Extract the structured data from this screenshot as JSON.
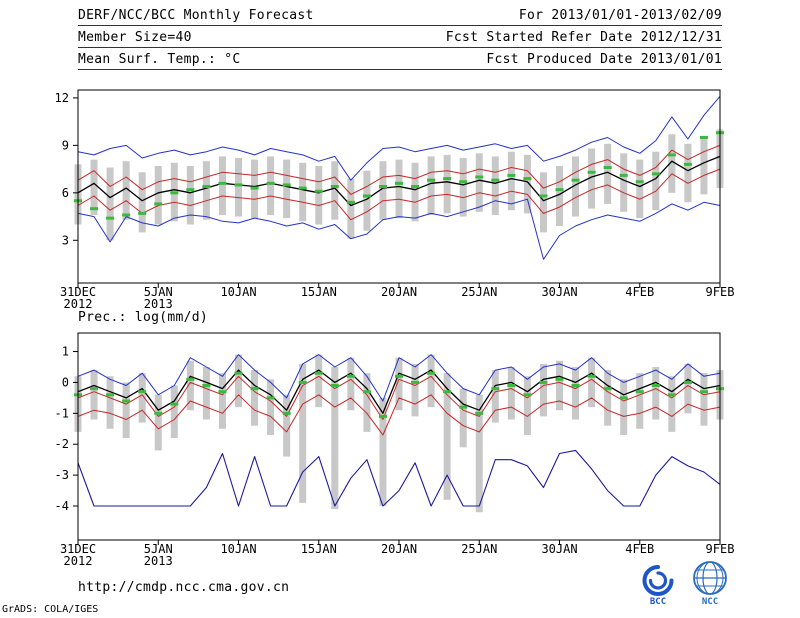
{
  "header": {
    "left": [
      "DERF/NCC/BCC Monthly Forecast",
      "Member Size=40"
    ],
    "right": [
      "For 2013/01/01-2013/02/09",
      "Fcst Started Refer Date 2012/12/31",
      "Fcst Produced Date 2013/01/01"
    ]
  },
  "footer": {
    "url": "http://cmdp.ncc.cma.gov.cn",
    "bcc_label": "BCC",
    "ncc_label": "NCC",
    "credit": "GrADS: COLA/IGES"
  },
  "colors": {
    "envelope_blue": "#2433c8",
    "quartile_red": "#c62828",
    "mean_black": "#000000",
    "min_navy": "#1b1b9e",
    "obs_green": "#3cb93c",
    "spread_gray": "#c8c8c8",
    "logo_blue": "#1e56c8"
  },
  "chart_data": [
    {
      "type": "line",
      "title": "Mean Surf. Temp.: °C",
      "x_range": [
        0,
        40
      ],
      "ylim": [
        0.3,
        12.5
      ],
      "y_ticks": [
        3,
        6,
        9,
        12
      ],
      "x_ticks": [
        {
          "pos": 0,
          "lines": [
            "31DEC",
            "2012"
          ]
        },
        {
          "pos": 5,
          "lines": [
            "5JAN",
            "2013"
          ]
        },
        {
          "pos": 10,
          "lines": [
            "10JAN"
          ]
        },
        {
          "pos": 15,
          "lines": [
            "15JAN"
          ]
        },
        {
          "pos": 20,
          "lines": [
            "20JAN"
          ]
        },
        {
          "pos": 25,
          "lines": [
            "25JAN"
          ]
        },
        {
          "pos": 30,
          "lines": [
            "30JAN"
          ]
        },
        {
          "pos": 35,
          "lines": [
            "4FEB"
          ]
        },
        {
          "pos": 40,
          "lines": [
            "9FEB"
          ]
        }
      ],
      "bars": {
        "color": "#c8c8c8",
        "high": [
          7.8,
          8.1,
          7.6,
          8.0,
          7.3,
          7.7,
          7.9,
          7.7,
          8.0,
          8.3,
          8.2,
          8.1,
          8.3,
          8.1,
          7.9,
          7.7,
          8.0,
          6.9,
          7.4,
          8.0,
          8.1,
          7.9,
          8.3,
          8.4,
          8.2,
          8.5,
          8.3,
          8.6,
          8.4,
          7.3,
          7.7,
          8.3,
          8.8,
          9.1,
          8.5,
          8.1,
          8.6,
          9.7,
          9.1,
          9.6,
          10.0
        ],
        "low": [
          4.0,
          4.6,
          3.0,
          4.3,
          3.5,
          4.0,
          4.2,
          4.0,
          4.3,
          4.6,
          4.5,
          4.4,
          4.6,
          4.4,
          4.2,
          4.0,
          4.3,
          3.1,
          3.6,
          4.3,
          4.4,
          4.2,
          4.6,
          4.7,
          4.5,
          4.8,
          4.6,
          4.9,
          4.7,
          3.5,
          3.9,
          4.5,
          5.0,
          5.3,
          4.8,
          4.4,
          4.9,
          6.0,
          5.4,
          5.9,
          6.3
        ]
      },
      "series": [
        {
          "name": "ensemble-max",
          "color": "#2433c8",
          "width": 1,
          "values": [
            8.6,
            8.4,
            8.8,
            9.0,
            8.2,
            8.5,
            8.7,
            8.4,
            8.6,
            8.9,
            8.7,
            8.4,
            8.8,
            8.6,
            8.4,
            8.0,
            8.3,
            6.8,
            7.9,
            8.8,
            8.9,
            8.6,
            8.8,
            9.0,
            8.7,
            8.9,
            9.1,
            8.8,
            9.0,
            8.0,
            8.3,
            8.7,
            9.2,
            9.5,
            8.9,
            8.5,
            9.3,
            10.8,
            9.4,
            10.9,
            12.1
          ]
        },
        {
          "name": "upper-quartile",
          "color": "#c62828",
          "width": 1,
          "values": [
            6.8,
            7.4,
            6.4,
            7.0,
            6.2,
            6.7,
            6.9,
            6.7,
            7.0,
            7.3,
            7.2,
            7.1,
            7.3,
            7.1,
            6.9,
            6.7,
            7.0,
            5.9,
            6.4,
            7.0,
            7.1,
            6.9,
            7.3,
            7.4,
            7.2,
            7.5,
            7.3,
            7.6,
            7.4,
            6.3,
            6.7,
            7.3,
            7.8,
            8.1,
            7.5,
            7.1,
            7.6,
            8.7,
            8.1,
            8.6,
            9.0
          ]
        },
        {
          "name": "ensemble-mean",
          "color": "#000000",
          "width": 1.3,
          "values": [
            6.0,
            6.6,
            5.7,
            6.3,
            5.5,
            6.0,
            6.2,
            6.0,
            6.3,
            6.6,
            6.5,
            6.4,
            6.6,
            6.4,
            6.2,
            6.0,
            6.3,
            5.2,
            5.6,
            6.3,
            6.4,
            6.2,
            6.6,
            6.7,
            6.5,
            6.8,
            6.6,
            6.9,
            6.7,
            5.5,
            5.9,
            6.5,
            7.0,
            7.3,
            6.8,
            6.4,
            6.9,
            8.0,
            7.4,
            7.9,
            8.3
          ]
        },
        {
          "name": "lower-quartile",
          "color": "#c62828",
          "width": 1,
          "values": [
            5.2,
            5.8,
            4.9,
            5.5,
            4.7,
            5.2,
            5.4,
            5.2,
            5.5,
            5.8,
            5.7,
            5.6,
            5.8,
            5.6,
            5.4,
            5.2,
            5.5,
            4.3,
            4.8,
            5.5,
            5.6,
            5.4,
            5.8,
            5.9,
            5.7,
            6.0,
            5.8,
            6.1,
            5.9,
            4.7,
            5.1,
            5.7,
            6.2,
            6.5,
            6.0,
            5.6,
            6.1,
            7.2,
            6.6,
            7.1,
            7.5
          ]
        },
        {
          "name": "ensemble-min",
          "color": "#2433c8",
          "width": 1,
          "values": [
            4.7,
            4.5,
            2.9,
            4.5,
            4.1,
            3.9,
            4.4,
            4.6,
            4.5,
            4.2,
            4.1,
            4.4,
            4.2,
            3.9,
            4.1,
            3.7,
            4.0,
            3.1,
            3.4,
            4.3,
            4.5,
            4.4,
            4.7,
            4.5,
            4.8,
            5.1,
            5.5,
            5.3,
            5.6,
            1.8,
            3.3,
            3.9,
            4.3,
            4.6,
            4.4,
            4.2,
            4.7,
            5.3,
            4.9,
            5.4,
            5.2
          ]
        }
      ],
      "markers": {
        "name": "observation-dashes",
        "color": "#3cb93c",
        "values": [
          5.5,
          5.0,
          4.4,
          4.6,
          4.7,
          5.3,
          6.0,
          6.2,
          6.4,
          6.6,
          6.5,
          6.3,
          6.6,
          6.5,
          6.3,
          6.1,
          6.4,
          5.4,
          5.8,
          6.4,
          6.6,
          6.4,
          6.8,
          6.9,
          6.7,
          7.0,
          6.8,
          7.1,
          6.9,
          5.8,
          6.2,
          6.8,
          7.3,
          7.6,
          7.1,
          6.7,
          7.2,
          8.4,
          7.8,
          9.5,
          9.8
        ]
      }
    },
    {
      "type": "line",
      "title": "Prec.: log(mm/d)",
      "x_range": [
        0,
        40
      ],
      "ylim": [
        -5.1,
        1.6
      ],
      "y_ticks": [
        1,
        0,
        -1,
        -2,
        -3,
        -4
      ],
      "x_ticks": [
        {
          "pos": 0,
          "lines": [
            "31DEC",
            "2012"
          ]
        },
        {
          "pos": 5,
          "lines": [
            "5JAN",
            "2013"
          ]
        },
        {
          "pos": 10,
          "lines": [
            "10JAN"
          ]
        },
        {
          "pos": 15,
          "lines": [
            "15JAN"
          ]
        },
        {
          "pos": 20,
          "lines": [
            "20JAN"
          ]
        },
        {
          "pos": 25,
          "lines": [
            "25JAN"
          ]
        },
        {
          "pos": 30,
          "lines": [
            "30JAN"
          ]
        },
        {
          "pos": 35,
          "lines": [
            "4FEB"
          ]
        },
        {
          "pos": 40,
          "lines": [
            "9FEB"
          ]
        }
      ],
      "bars": {
        "color": "#c8c8c8",
        "high": [
          0.2,
          0.4,
          0.2,
          0.0,
          0.3,
          -0.4,
          -0.1,
          0.7,
          0.5,
          0.3,
          0.9,
          0.4,
          0.1,
          -0.4,
          0.6,
          0.9,
          0.5,
          0.8,
          0.3,
          -0.5,
          0.8,
          0.6,
          0.9,
          0.3,
          -0.2,
          -0.4,
          0.4,
          0.5,
          0.2,
          0.6,
          0.7,
          0.5,
          0.8,
          0.4,
          0.1,
          0.3,
          0.5,
          0.2,
          0.6,
          0.3,
          0.4
        ],
        "low": [
          -1.6,
          -1.2,
          -1.5,
          -1.8,
          -1.3,
          -2.2,
          -1.8,
          -0.9,
          -1.2,
          -1.5,
          -0.8,
          -1.4,
          -1.7,
          -2.4,
          -3.9,
          -0.8,
          -4.1,
          -0.9,
          -1.6,
          -4.0,
          -0.9,
          -1.1,
          -0.8,
          -3.8,
          -2.1,
          -4.2,
          -1.3,
          -1.2,
          -1.7,
          -1.1,
          -0.9,
          -1.2,
          -0.8,
          -1.4,
          -1.7,
          -1.5,
          -1.2,
          -1.6,
          -1.0,
          -1.4,
          -1.2
        ]
      },
      "series": [
        {
          "name": "ensemble-max",
          "color": "#2433c8",
          "width": 1,
          "values": [
            0.2,
            0.4,
            0.1,
            -0.1,
            0.3,
            -0.4,
            -0.1,
            0.8,
            0.5,
            0.2,
            0.9,
            0.4,
            0.0,
            -0.5,
            0.6,
            0.9,
            0.5,
            0.8,
            0.2,
            -0.6,
            0.8,
            0.5,
            0.9,
            0.3,
            -0.2,
            -0.4,
            0.4,
            0.5,
            0.1,
            0.5,
            0.6,
            0.4,
            0.8,
            0.3,
            0.0,
            0.2,
            0.4,
            0.1,
            0.6,
            0.2,
            0.3
          ]
        },
        {
          "name": "upper-quartile",
          "color": "#c62828",
          "width": 1,
          "values": [
            -0.5,
            -0.3,
            -0.5,
            -0.7,
            -0.4,
            -1.1,
            -0.8,
            0.0,
            -0.2,
            -0.4,
            0.2,
            -0.3,
            -0.6,
            -1.1,
            -0.1,
            0.2,
            -0.2,
            0.1,
            -0.4,
            -1.2,
            0.1,
            -0.1,
            0.2,
            -0.4,
            -0.9,
            -1.1,
            -0.3,
            -0.2,
            -0.5,
            -0.1,
            0.0,
            -0.2,
            0.1,
            -0.3,
            -0.6,
            -0.4,
            -0.2,
            -0.5,
            -0.1,
            -0.4,
            -0.3
          ]
        },
        {
          "name": "ensemble-mean",
          "color": "#000000",
          "width": 1.3,
          "values": [
            -0.3,
            -0.1,
            -0.3,
            -0.5,
            -0.2,
            -0.9,
            -0.6,
            0.2,
            0.0,
            -0.2,
            0.4,
            -0.1,
            -0.4,
            -0.9,
            0.1,
            0.4,
            0.0,
            0.3,
            -0.2,
            -1.0,
            0.3,
            0.1,
            0.4,
            -0.2,
            -0.7,
            -0.9,
            -0.1,
            0.0,
            -0.3,
            0.1,
            0.2,
            0.0,
            0.3,
            -0.1,
            -0.4,
            -0.2,
            0.0,
            -0.3,
            0.1,
            -0.2,
            -0.1
          ]
        },
        {
          "name": "lower-quartile",
          "color": "#c62828",
          "width": 1,
          "values": [
            -1.1,
            -0.9,
            -1.0,
            -1.2,
            -0.9,
            -1.5,
            -1.2,
            -0.6,
            -0.8,
            -1.0,
            -0.4,
            -0.9,
            -1.1,
            -1.6,
            -0.7,
            -0.4,
            -0.8,
            -0.5,
            -1.0,
            -1.7,
            -0.5,
            -0.7,
            -0.4,
            -1.0,
            -1.4,
            -1.6,
            -0.9,
            -0.8,
            -1.1,
            -0.7,
            -0.6,
            -0.8,
            -0.5,
            -0.9,
            -1.1,
            -1.0,
            -0.8,
            -1.1,
            -0.7,
            -0.9,
            -0.8
          ]
        },
        {
          "name": "ensemble-min",
          "color": "#1b1b9e",
          "width": 1.1,
          "values": [
            -2.6,
            -4.0,
            -4.0,
            -4.0,
            -4.0,
            -4.0,
            -4.0,
            -4.0,
            -3.4,
            -2.3,
            -4.0,
            -2.4,
            -4.0,
            -4.0,
            -2.9,
            -2.4,
            -4.0,
            -3.1,
            -2.5,
            -4.0,
            -3.5,
            -2.6,
            -4.0,
            -3.0,
            -4.0,
            -4.0,
            -2.5,
            -2.5,
            -2.7,
            -3.4,
            -2.3,
            -2.2,
            -2.8,
            -3.5,
            -4.0,
            -4.0,
            -3.0,
            -2.4,
            -2.7,
            -2.9,
            -3.3
          ]
        }
      ],
      "markers": {
        "name": "observation-dashes",
        "color": "#3cb93c",
        "values": [
          -0.4,
          -0.2,
          -0.4,
          -0.6,
          -0.3,
          -1.0,
          -0.7,
          0.1,
          -0.1,
          -0.3,
          0.3,
          -0.2,
          -0.5,
          -1.0,
          0.0,
          0.3,
          -0.1,
          0.2,
          -0.3,
          -1.1,
          0.2,
          0.0,
          0.3,
          -0.3,
          -0.8,
          -1.0,
          -0.2,
          -0.1,
          -0.4,
          0.0,
          0.1,
          -0.1,
          0.2,
          -0.2,
          -0.5,
          -0.3,
          -0.1,
          -0.4,
          0.0,
          -0.3,
          -0.2
        ]
      }
    }
  ]
}
